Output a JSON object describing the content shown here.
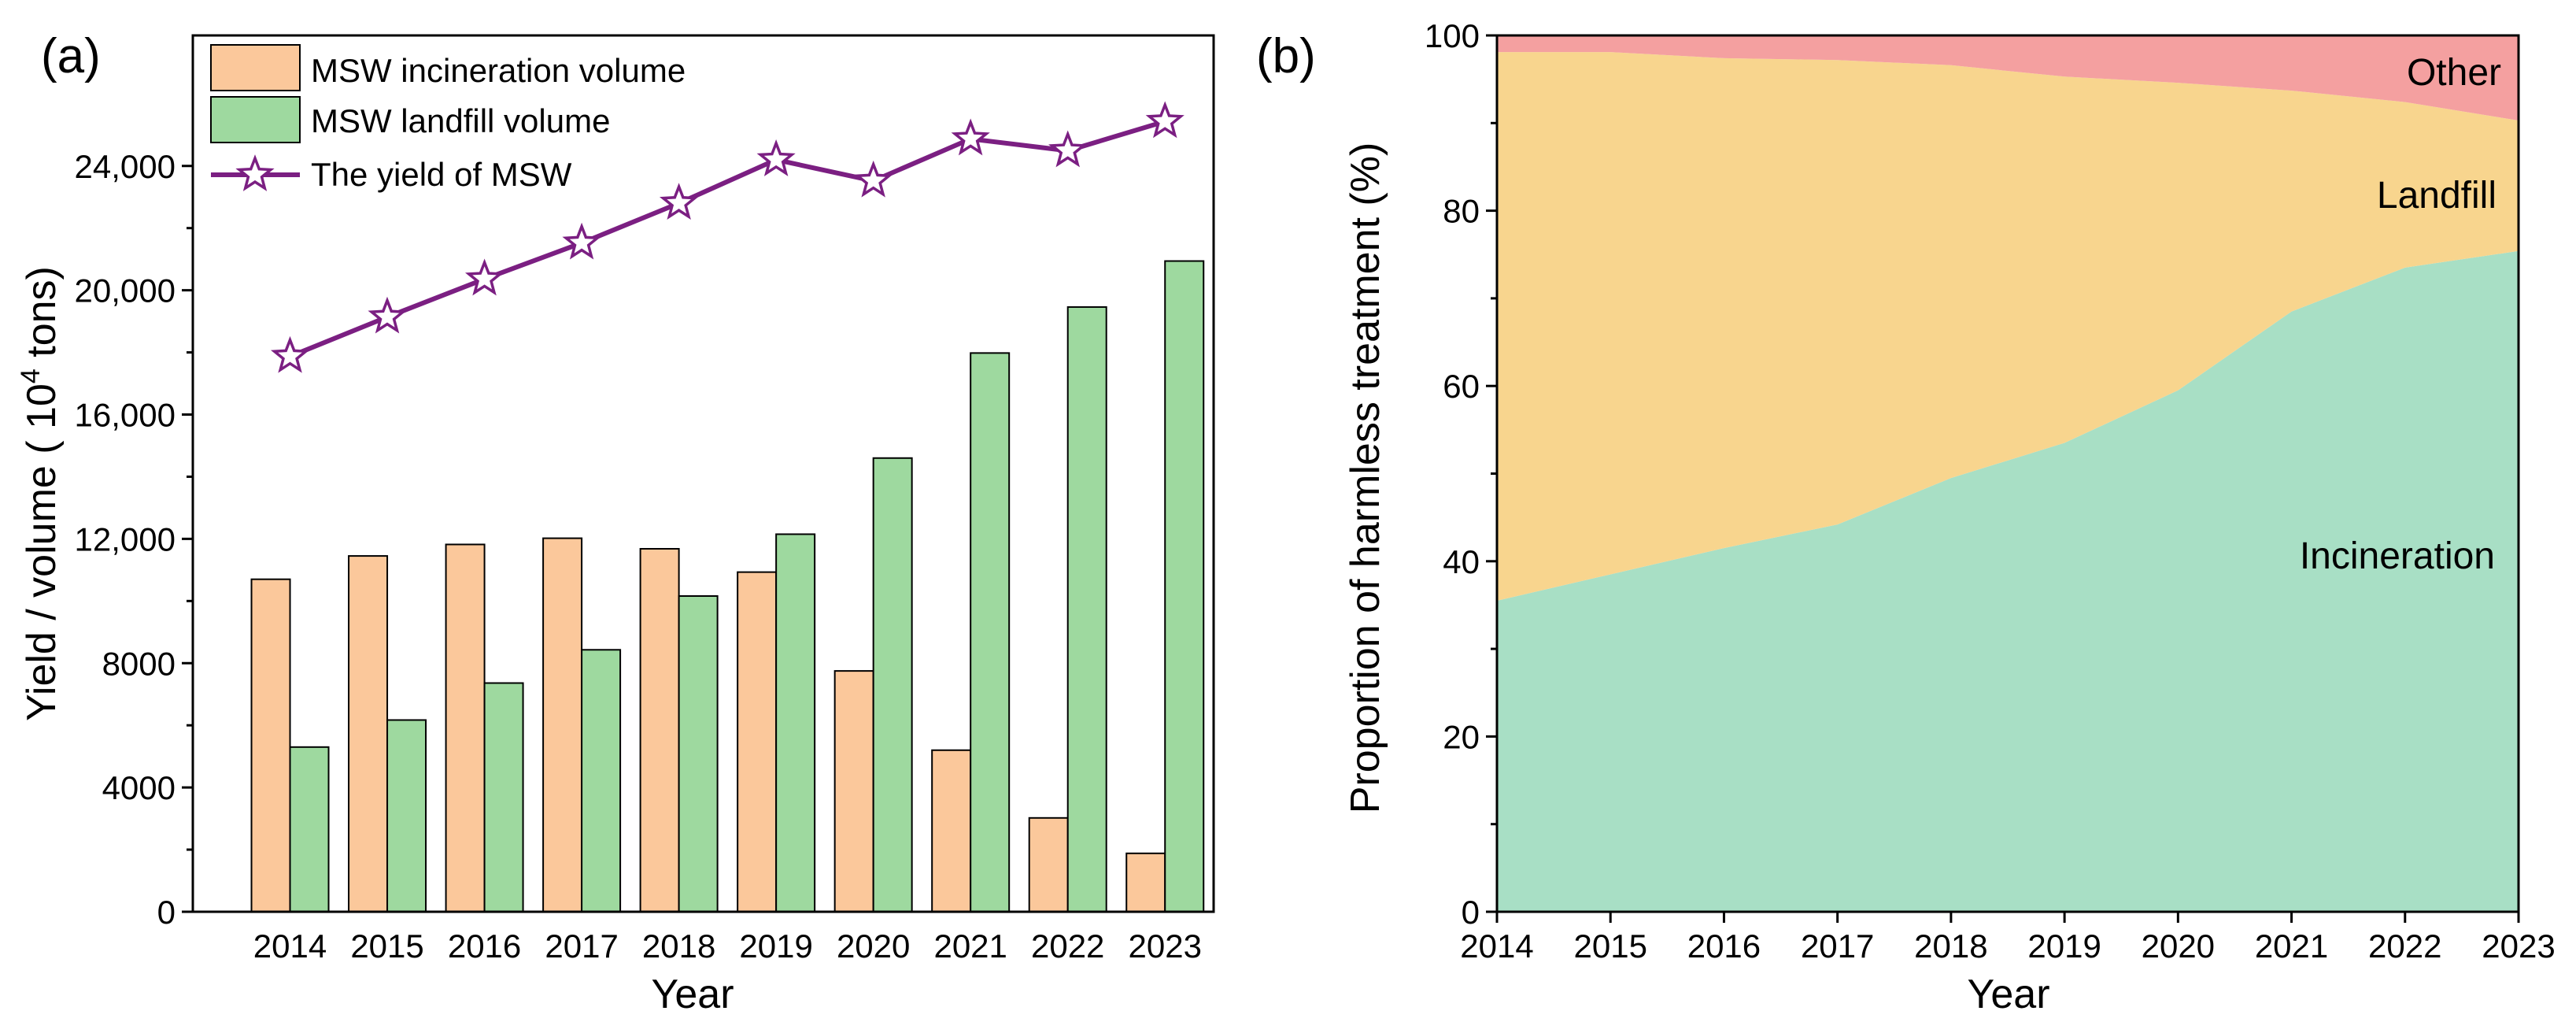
{
  "chart_data": [
    {
      "panel": "(a)",
      "type": "bar",
      "categories": [
        "2014",
        "2015",
        "2016",
        "2017",
        "2018",
        "2019",
        "2020",
        "2021",
        "2022",
        "2023"
      ],
      "series": [
        {
          "name": "MSW incineration volume",
          "kind": "bar",
          "color": "#FBC89B",
          "values": [
            10700,
            11450,
            11820,
            12020,
            11680,
            10930,
            7750,
            5200,
            3020,
            1880
          ]
        },
        {
          "name": "MSW landfill volume",
          "kind": "bar",
          "color": "#9ED99F",
          "values": [
            5300,
            6170,
            7360,
            8430,
            10160,
            12150,
            14600,
            17980,
            19460,
            20940
          ]
        },
        {
          "name": "The yield of MSW",
          "kind": "line",
          "color": "#7B1F82",
          "marker": "star",
          "values": [
            17870,
            19140,
            20360,
            21520,
            22800,
            24200,
            23520,
            24870,
            24490,
            25430
          ]
        }
      ],
      "xlabel": "Year",
      "ylabel_main": "Yield / volume ( 10",
      "ylabel_sup": "4",
      "ylabel_tail": " tons)",
      "yticks": [
        0,
        4000,
        8000,
        12000,
        16000,
        20000,
        24000
      ],
      "ytick_labels": [
        "0",
        "4000",
        "8000",
        "12,000",
        "16,000",
        "20,000",
        "24,000"
      ],
      "ylim": [
        0,
        28200
      ],
      "legend_position": "top-left",
      "grid": false
    },
    {
      "panel": "(b)",
      "type": "area",
      "stacked": true,
      "x": [
        2014,
        2015,
        2016,
        2017,
        2018,
        2019,
        2020,
        2021,
        2022,
        2023
      ],
      "xtick_labels": [
        "2014",
        "2015",
        "2016",
        "2017",
        "2018",
        "2019",
        "2020",
        "2021",
        "2022",
        "2023"
      ],
      "series": [
        {
          "name": "Incineration",
          "color": "#A8DFC5",
          "values": [
            35.5,
            38.5,
            41.5,
            44.2,
            49.5,
            53.5,
            59.5,
            68.5,
            73.5,
            75.4
          ]
        },
        {
          "name": "Landfill",
          "color": "#F8D58E",
          "values": [
            62.6,
            59.6,
            55.9,
            53.0,
            47.1,
            41.8,
            35.1,
            25.2,
            18.9,
            14.9
          ]
        },
        {
          "name": "Other",
          "color": "#F4A0A0",
          "values": [
            1.9,
            1.9,
            2.6,
            2.8,
            3.4,
            4.7,
            5.4,
            6.3,
            7.6,
            9.7
          ]
        }
      ],
      "xlabel": "Year",
      "ylabel": "Proportion of harmless treatment (%)",
      "yticks": [
        0,
        20,
        40,
        60,
        80,
        100
      ],
      "ylim": [
        0,
        100
      ],
      "grid": false
    }
  ]
}
